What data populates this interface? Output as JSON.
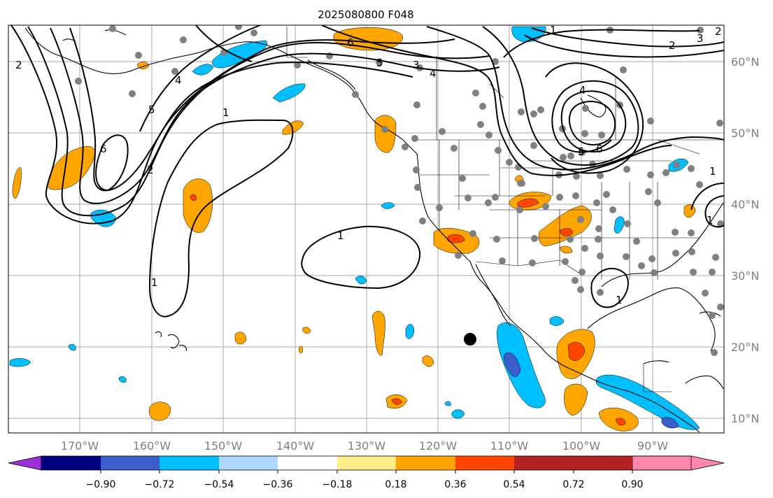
{
  "title": "2025080800 F048",
  "lon_labels": [
    "170°W",
    "160°W",
    "150°W",
    "140°W",
    "130°W",
    "120°W",
    "110°W",
    "100°W",
    "90°W"
  ],
  "lat_labels": [
    "60°N",
    "50°N",
    "40°N",
    "30°N",
    "20°N",
    "10°N"
  ],
  "colorbar": {
    "ticks": [
      "−0.90",
      "−0.72",
      "−0.54",
      "−0.36",
      "−0.18",
      "0.18",
      "0.36",
      "0.54",
      "0.72",
      "0.90"
    ],
    "colors": [
      "#9b30d9",
      "#000080",
      "#3a5fcd",
      "#00bfff",
      "#add8ff",
      "#ffffff",
      "#ffec8b",
      "#ffa500",
      "#ff4500",
      "#b22222",
      "#ff88aa"
    ]
  },
  "contour_labels": [
    "6",
    "5",
    "4",
    "3",
    "2",
    "1",
    "2",
    "6",
    "5",
    "4",
    "1",
    "1",
    "1",
    "1",
    "1",
    "2",
    "6",
    "5",
    "4",
    "3",
    "2",
    "1"
  ],
  "colors": {
    "positive_light": "#ffec8b",
    "positive": "#ffa500",
    "positive_strong": "#ff4500",
    "negative": "#00bfff",
    "negative_strong": "#3a5fcd",
    "station": "#808080",
    "grid": "#a8a8a8"
  }
}
